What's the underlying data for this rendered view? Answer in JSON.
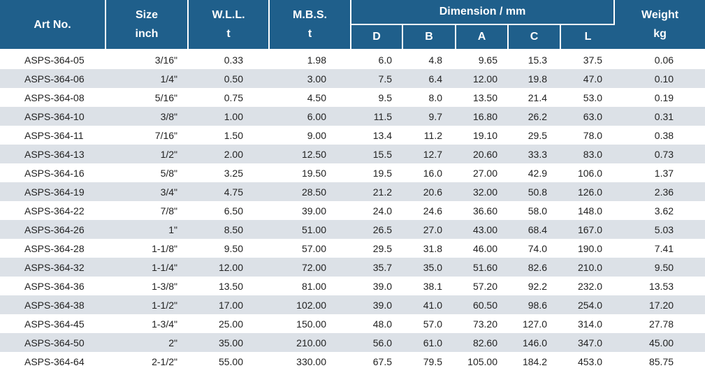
{
  "headers": {
    "art_no": "Art No.",
    "size": {
      "line1": "Size",
      "line2": "inch"
    },
    "wll": {
      "line1": "W.L.L.",
      "line2": "t"
    },
    "mbs": {
      "line1": "M.B.S.",
      "line2": "t"
    },
    "dimension": "Dimension / mm",
    "dims": [
      "D",
      "B",
      "A",
      "C",
      "L"
    ],
    "weight": {
      "line1": "Weight",
      "line2": "kg"
    }
  },
  "rows": [
    {
      "art": "ASPS-364-05",
      "size": "3/16\"",
      "wll": "0.33",
      "mbs": "1.98",
      "d": "6.0",
      "b": "4.8",
      "a": "9.65",
      "c": "15.3",
      "l": "37.5",
      "w": "0.06"
    },
    {
      "art": "ASPS-364-06",
      "size": "1/4\"",
      "wll": "0.50",
      "mbs": "3.00",
      "d": "7.5",
      "b": "6.4",
      "a": "12.00",
      "c": "19.8",
      "l": "47.0",
      "w": "0.10"
    },
    {
      "art": "ASPS-364-08",
      "size": "5/16\"",
      "wll": "0.75",
      "mbs": "4.50",
      "d": "9.5",
      "b": "8.0",
      "a": "13.50",
      "c": "21.4",
      "l": "53.0",
      "w": "0.19"
    },
    {
      "art": "ASPS-364-10",
      "size": "3/8\"",
      "wll": "1.00",
      "mbs": "6.00",
      "d": "11.5",
      "b": "9.7",
      "a": "16.80",
      "c": "26.2",
      "l": "63.0",
      "w": "0.31"
    },
    {
      "art": "ASPS-364-11",
      "size": "7/16\"",
      "wll": "1.50",
      "mbs": "9.00",
      "d": "13.4",
      "b": "11.2",
      "a": "19.10",
      "c": "29.5",
      "l": "78.0",
      "w": "0.38"
    },
    {
      "art": "ASPS-364-13",
      "size": "1/2\"",
      "wll": "2.00",
      "mbs": "12.50",
      "d": "15.5",
      "b": "12.7",
      "a": "20.60",
      "c": "33.3",
      "l": "83.0",
      "w": "0.73"
    },
    {
      "art": "ASPS-364-16",
      "size": "5/8\"",
      "wll": "3.25",
      "mbs": "19.50",
      "d": "19.5",
      "b": "16.0",
      "a": "27.00",
      "c": "42.9",
      "l": "106.0",
      "w": "1.37"
    },
    {
      "art": "ASPS-364-19",
      "size": "3/4\"",
      "wll": "4.75",
      "mbs": "28.50",
      "d": "21.2",
      "b": "20.6",
      "a": "32.00",
      "c": "50.8",
      "l": "126.0",
      "w": "2.36"
    },
    {
      "art": "ASPS-364-22",
      "size": "7/8\"",
      "wll": "6.50",
      "mbs": "39.00",
      "d": "24.0",
      "b": "24.6",
      "a": "36.60",
      "c": "58.0",
      "l": "148.0",
      "w": "3.62"
    },
    {
      "art": "ASPS-364-26",
      "size": "1\"",
      "wll": "8.50",
      "mbs": "51.00",
      "d": "26.5",
      "b": "27.0",
      "a": "43.00",
      "c": "68.4",
      "l": "167.0",
      "w": "5.03"
    },
    {
      "art": "ASPS-364-28",
      "size": "1-1/8\"",
      "wll": "9.50",
      "mbs": "57.00",
      "d": "29.5",
      "b": "31.8",
      "a": "46.00",
      "c": "74.0",
      "l": "190.0",
      "w": "7.41"
    },
    {
      "art": "ASPS-364-32",
      "size": "1-1/4\"",
      "wll": "12.00",
      "mbs": "72.00",
      "d": "35.7",
      "b": "35.0",
      "a": "51.60",
      "c": "82.6",
      "l": "210.0",
      "w": "9.50"
    },
    {
      "art": "ASPS-364-36",
      "size": "1-3/8\"",
      "wll": "13.50",
      "mbs": "81.00",
      "d": "39.0",
      "b": "38.1",
      "a": "57.20",
      "c": "92.2",
      "l": "232.0",
      "w": "13.53"
    },
    {
      "art": "ASPS-364-38",
      "size": "1-1/2\"",
      "wll": "17.00",
      "mbs": "102.00",
      "d": "39.0",
      "b": "41.0",
      "a": "60.50",
      "c": "98.6",
      "l": "254.0",
      "w": "17.20"
    },
    {
      "art": "ASPS-364-45",
      "size": "1-3/4\"",
      "wll": "25.00",
      "mbs": "150.00",
      "d": "48.0",
      "b": "57.0",
      "a": "73.20",
      "c": "127.0",
      "l": "314.0",
      "w": "27.78"
    },
    {
      "art": "ASPS-364-50",
      "size": "2\"",
      "wll": "35.00",
      "mbs": "210.00",
      "d": "56.0",
      "b": "61.0",
      "a": "82.60",
      "c": "146.0",
      "l": "347.0",
      "w": "45.00"
    },
    {
      "art": "ASPS-364-64",
      "size": "2-1/2\"",
      "wll": "55.00",
      "mbs": "330.00",
      "d": "67.5",
      "b": "79.5",
      "a": "105.00",
      "c": "184.2",
      "l": "453.0",
      "w": "85.75"
    }
  ]
}
